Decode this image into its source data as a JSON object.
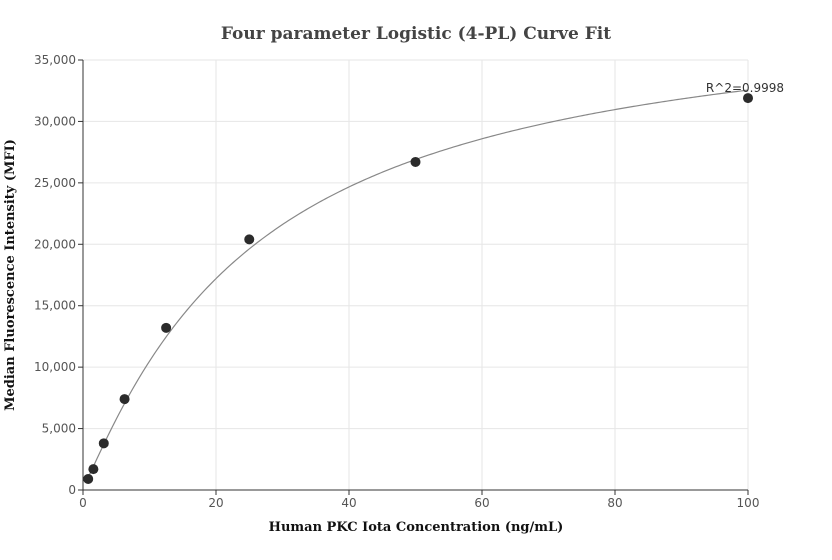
{
  "chart_data": {
    "type": "scatter",
    "title": "Four parameter Logistic (4-PL) Curve Fit",
    "xlabel": "Human PKC Iota Concentration (ng/mL)",
    "ylabel": "Median Fluorescence Intensity (MFI)",
    "xlim": [
      0,
      100
    ],
    "ylim": [
      0,
      35000
    ],
    "x_ticks": [
      0,
      20,
      40,
      60,
      80,
      100
    ],
    "y_ticks": [
      0,
      5000,
      10000,
      15000,
      20000,
      25000,
      30000,
      35000
    ],
    "x_tick_labels": [
      "0",
      "20",
      "40",
      "60",
      "80",
      "100"
    ],
    "y_tick_labels": [
      "0",
      "5,000",
      "10,000",
      "15,000",
      "20,000",
      "25,000",
      "30,000",
      "35,000"
    ],
    "grid": true,
    "points": {
      "x": [
        0.78,
        1.56,
        3.125,
        6.25,
        12.5,
        25,
        50,
        100
      ],
      "y": [
        900,
        1700,
        3800,
        7400,
        13200,
        20400,
        26700,
        31900
      ]
    },
    "fit_curve": {
      "model": "4PL",
      "a": 200,
      "b": 1.1,
      "c": 26,
      "d": 39900
    },
    "annotation": "R^2=0.9998",
    "colors": {
      "points": "#2b2b2b",
      "curve": "#888888",
      "grid": "#e6e6e6",
      "axis": "#333333"
    }
  }
}
